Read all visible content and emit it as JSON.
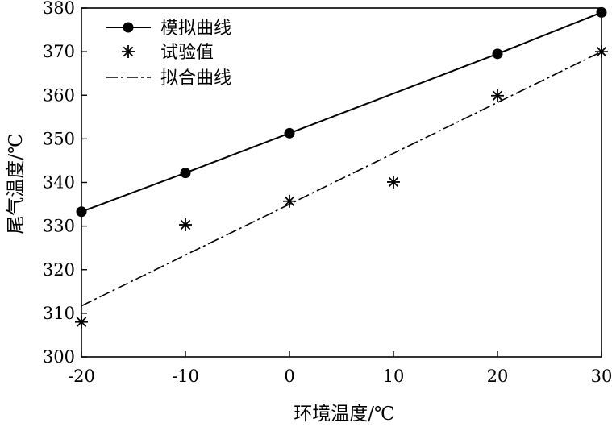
{
  "chart_data": {
    "type": "line",
    "xlabel": "环境温度/℃",
    "ylabel": "尾气温度/℃",
    "xlim": [
      -20,
      30
    ],
    "ylim": [
      300,
      380
    ],
    "x_ticks": [
      -20,
      -10,
      0,
      10,
      20,
      30
    ],
    "y_ticks": [
      300,
      310,
      320,
      330,
      340,
      350,
      360,
      370,
      380
    ],
    "x_tick_labels": [
      "-20",
      "-10",
      "0",
      "10",
      "20",
      "30"
    ],
    "y_tick_labels": [
      "300",
      "310",
      "320",
      "330",
      "340",
      "350",
      "360",
      "370",
      "380"
    ],
    "grid": false,
    "legend_position": "top-left",
    "series": [
      {
        "name": "模拟曲线",
        "style": "solid-line-circle",
        "x": [
          -20,
          -10,
          0,
          20,
          30
        ],
        "y": [
          333.3,
          342.2,
          351.3,
          369.5,
          379.0
        ]
      },
      {
        "name": "试验值",
        "style": "asterisk-markers",
        "x": [
          -20,
          -10,
          0,
          10,
          20,
          30
        ],
        "y": [
          308,
          330.3,
          335.7,
          340.1,
          359.9,
          370
        ]
      },
      {
        "name": "拟合曲线",
        "style": "dash-dot-line",
        "x": [
          -20,
          30
        ],
        "y": [
          311.7,
          370
        ]
      }
    ]
  }
}
